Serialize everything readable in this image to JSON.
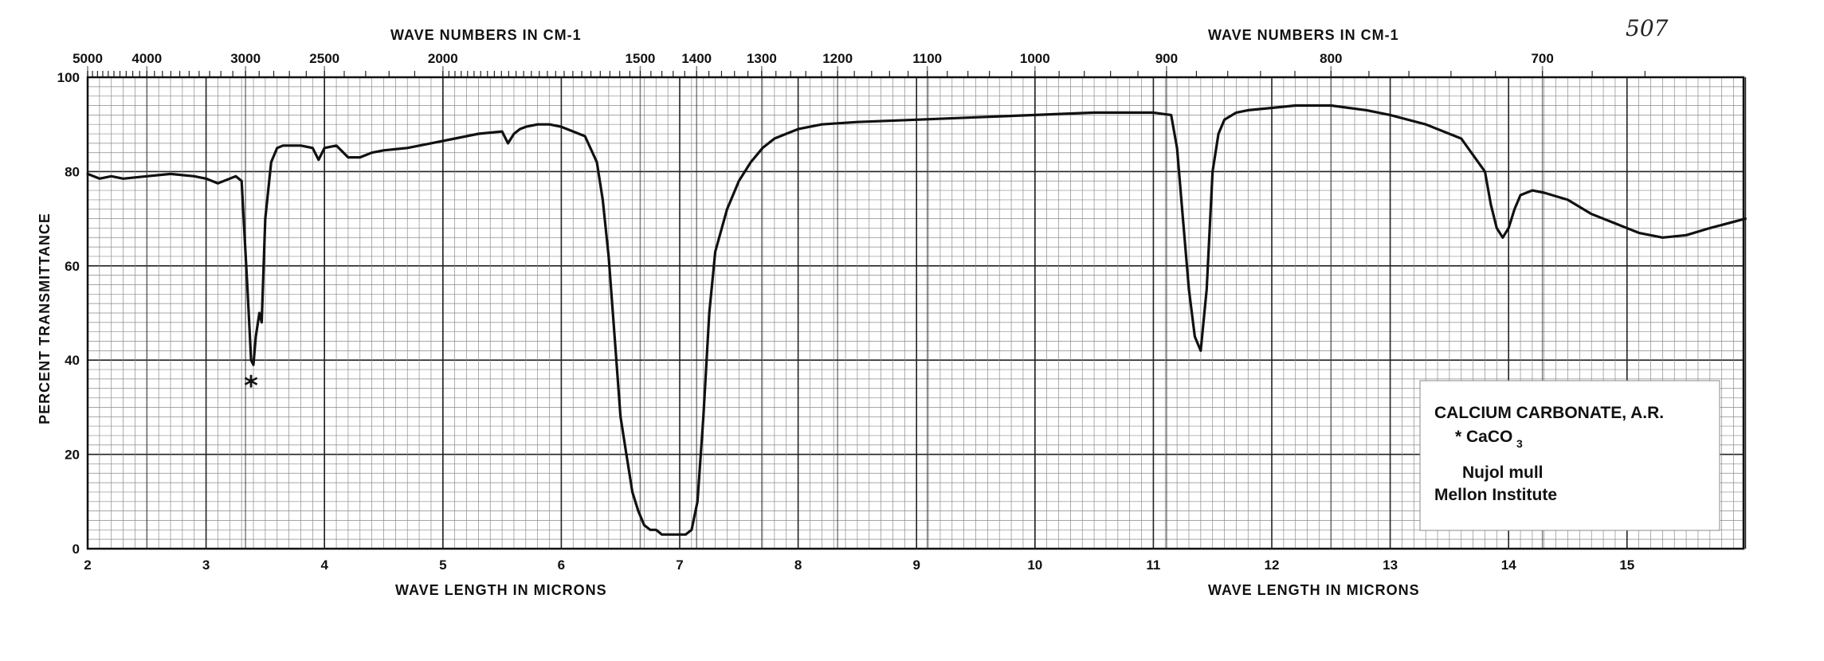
{
  "sheet_number": "507",
  "chart_data": {
    "type": "line",
    "title": "",
    "xlabel": "WAVE LENGTH IN MICRONS",
    "xlabel_right": "WAVE LENGTH IN MICRONS",
    "x2label": "WAVE NUMBERS IN CM-1",
    "x2label_right": "WAVE NUMBERS IN CM-1",
    "ylabel": "PERCENT TRANSMITTANCE",
    "xlim": [
      2,
      16
    ],
    "ylim": [
      0,
      100
    ],
    "grid": true,
    "x_ticks": [
      "2",
      "3",
      "4",
      "5",
      "6",
      "7",
      "8",
      "9",
      "10",
      "11",
      "12",
      "13",
      "14",
      "15"
    ],
    "y_ticks": [
      "0",
      "20",
      "40",
      "60",
      "80",
      "100"
    ],
    "x2_ticks": [
      "5000",
      "4000",
      "3000",
      "2500",
      "2000",
      "1500",
      "1400",
      "1300",
      "1200",
      "1100",
      "1000",
      "900",
      "800",
      "700"
    ],
    "series": [
      {
        "x": [
          2.0,
          2.1,
          2.2,
          2.3,
          2.5,
          2.7,
          2.9,
          3.0,
          3.1,
          3.2,
          3.25,
          3.3,
          3.35,
          3.38,
          3.4,
          3.42,
          3.45,
          3.47,
          3.5,
          3.55,
          3.6,
          3.65,
          3.7,
          3.8,
          3.9,
          3.95,
          4.0,
          4.1,
          4.2,
          4.3,
          4.4,
          4.5,
          4.7,
          4.9,
          5.1,
          5.3,
          5.5,
          5.55,
          5.6,
          5.65,
          5.7,
          5.8,
          5.9,
          6.0,
          6.1,
          6.2,
          6.3,
          6.35,
          6.4,
          6.45,
          6.5,
          6.55,
          6.6,
          6.65,
          6.7,
          6.75,
          6.8,
          6.85,
          6.9,
          7.0,
          7.05,
          7.1,
          7.15,
          7.2,
          7.25,
          7.3,
          7.4,
          7.5,
          7.6,
          7.7,
          7.8,
          7.9,
          8.0,
          8.2,
          8.5,
          9.0,
          9.5,
          10.0,
          10.5,
          11.0,
          11.15,
          11.2,
          11.25,
          11.3,
          11.35,
          11.4,
          11.45,
          11.5,
          11.55,
          11.6,
          11.7,
          11.8,
          12.0,
          12.2,
          12.5,
          12.8,
          13.0,
          13.3,
          13.6,
          13.8,
          13.85,
          13.9,
          13.95,
          14.0,
          14.05,
          14.1,
          14.2,
          14.3,
          14.5,
          14.7,
          14.9,
          15.1,
          15.3,
          15.5,
          15.7,
          16.0
        ],
        "y": [
          79.5,
          78.5,
          79,
          78.5,
          79,
          79.5,
          79,
          78.5,
          77.5,
          78.5,
          79,
          78,
          55,
          40,
          39,
          45,
          50,
          48,
          70,
          82,
          85,
          85.5,
          85.5,
          85.5,
          85,
          82.5,
          85,
          85.5,
          83,
          83,
          84,
          84.5,
          85,
          86,
          87,
          88,
          88.5,
          86,
          88,
          89,
          89.5,
          90,
          90,
          89.5,
          88.5,
          87.5,
          82,
          74,
          62,
          45,
          28,
          20,
          12,
          8,
          5,
          4,
          4,
          3,
          3,
          3,
          3,
          4,
          10,
          28,
          50,
          63,
          72,
          78,
          82,
          85,
          87,
          88,
          89,
          90,
          90.5,
          91,
          91.5,
          92,
          92.5,
          92.5,
          92,
          85,
          70,
          55,
          45,
          42,
          55,
          80,
          88,
          91,
          92.5,
          93,
          93.5,
          94,
          94,
          93,
          92,
          90,
          87,
          80,
          73,
          68,
          66,
          68,
          72,
          75,
          76,
          75.5,
          74,
          71,
          69,
          67,
          66,
          66.5,
          68,
          70
        ]
      }
    ],
    "annotations": [
      {
        "text": "*",
        "x": 3.38,
        "y": 35
      }
    ],
    "legend": {
      "position": "bottom-right",
      "lines": [
        "CALCIUM CARBONATE, A.R.",
        "* CaCO",
        "3",
        "Nujol mull",
        "Mellon Institute"
      ]
    }
  }
}
